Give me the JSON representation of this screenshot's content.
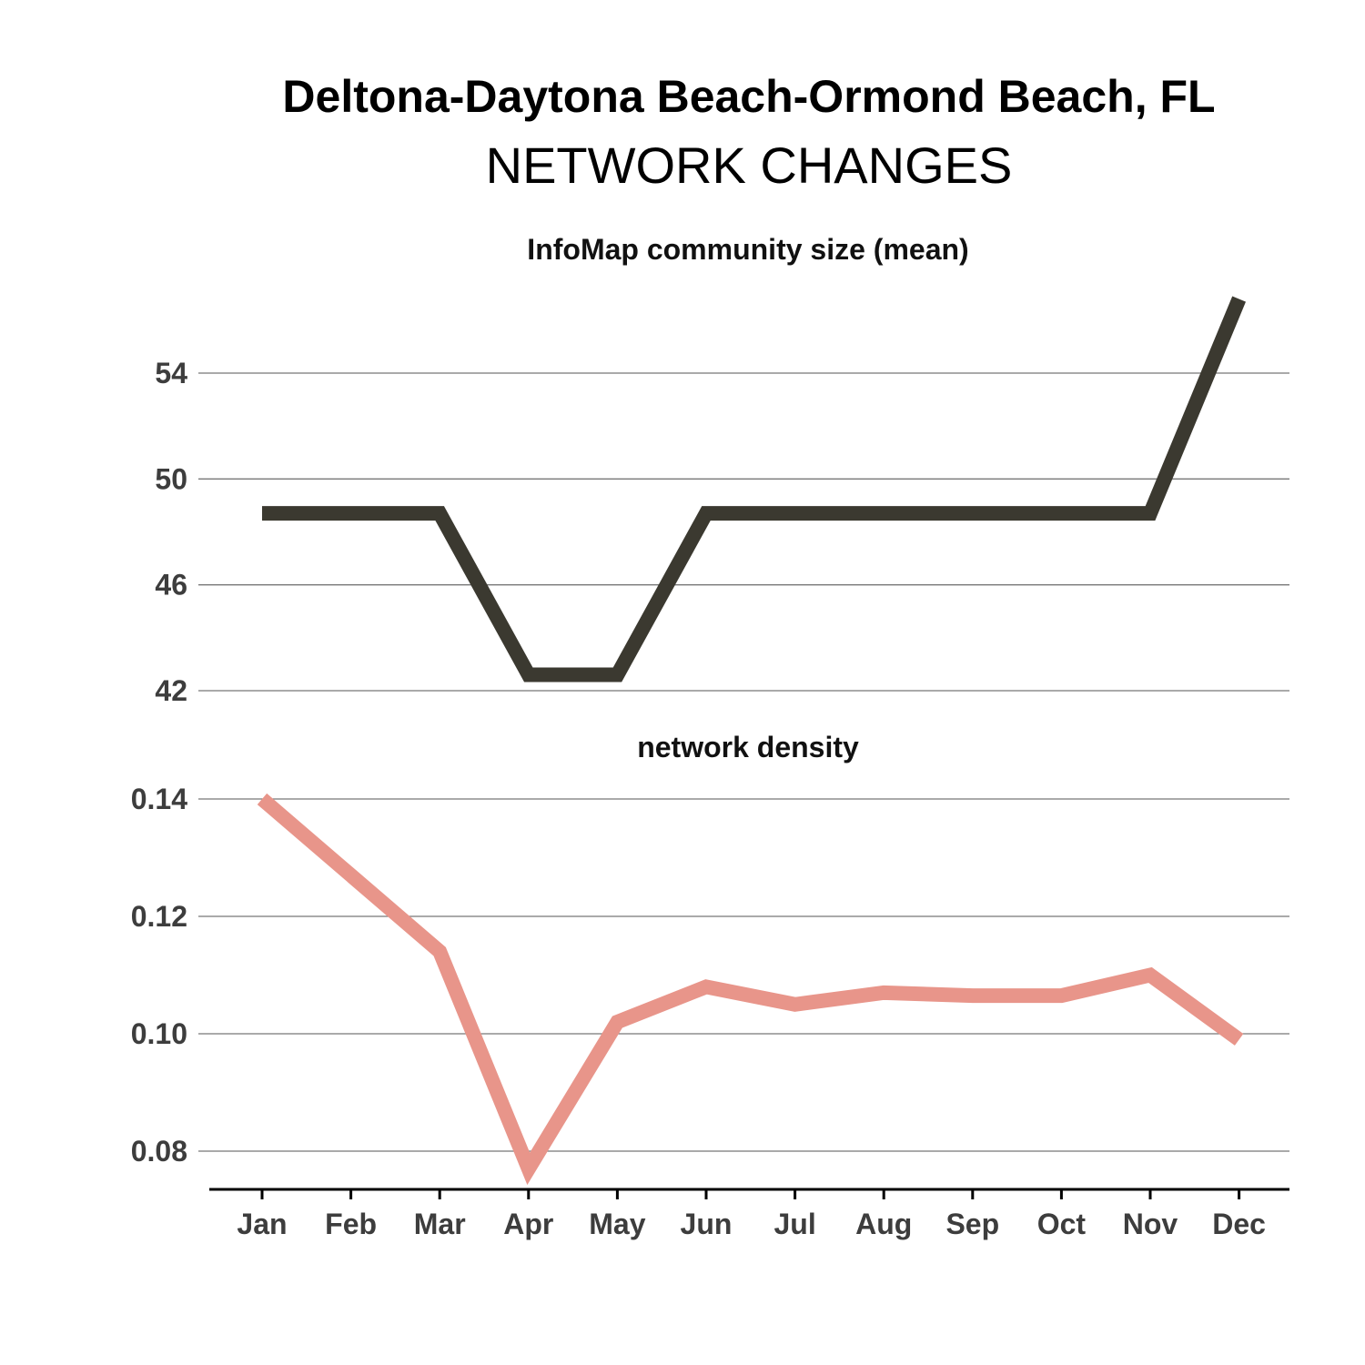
{
  "header": {
    "title": "Deltona-Daytona Beach-Ormond Beach, FL",
    "subtitle": "NETWORK CHANGES"
  },
  "chart_data": [
    {
      "type": "line",
      "title": "InfoMap community size (mean)",
      "categories": [
        "Jan",
        "Feb",
        "Mar",
        "Apr",
        "May",
        "Jun",
        "Jul",
        "Aug",
        "Sep",
        "Oct",
        "Nov",
        "Dec"
      ],
      "series": [
        {
          "values": [
            48.7,
            48.7,
            48.7,
            42.6,
            42.6,
            48.7,
            48.7,
            48.7,
            48.7,
            48.7,
            48.7,
            56.8
          ],
          "color": "#3b3930"
        }
      ],
      "yticks": [
        42,
        46,
        50,
        54
      ],
      "ytick_labels": [
        "42",
        "46",
        "50",
        "54"
      ],
      "ylim": [
        42,
        56.8
      ],
      "grid": true
    },
    {
      "type": "line",
      "title": "network density",
      "categories": [
        "Jan",
        "Feb",
        "Mar",
        "Apr",
        "May",
        "Jun",
        "Jul",
        "Aug",
        "Sep",
        "Oct",
        "Nov",
        "Dec"
      ],
      "series": [
        {
          "values": [
            0.14,
            0.127,
            0.114,
            0.077,
            0.102,
            0.108,
            0.105,
            0.107,
            0.1065,
            0.1065,
            0.11,
            0.099
          ],
          "color": "#e8958a"
        }
      ],
      "yticks": [
        0.08,
        0.1,
        0.12,
        0.14
      ],
      "ytick_labels": [
        "0.08",
        "0.10",
        "0.12",
        "0.14"
      ],
      "ylim": [
        0.0735,
        0.14
      ],
      "grid": true
    }
  ]
}
